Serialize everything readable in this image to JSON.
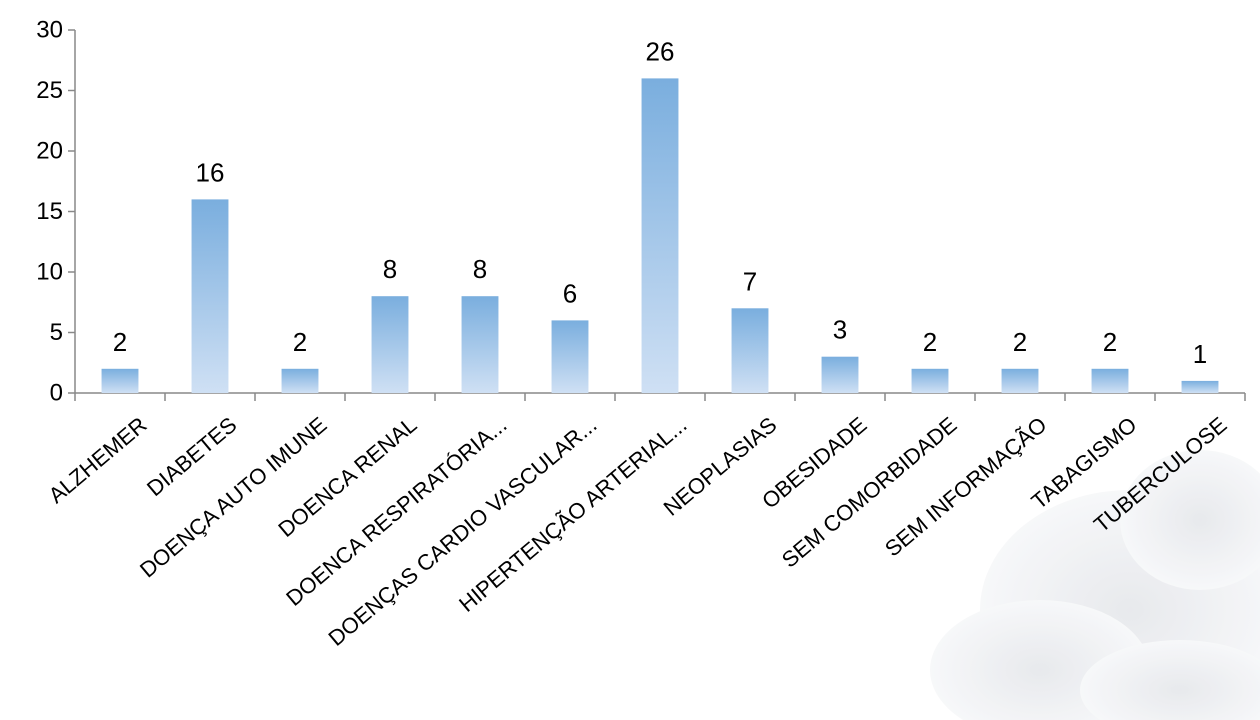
{
  "chart_data": {
    "type": "bar",
    "title": "",
    "xlabel": "",
    "ylabel": "",
    "categories": [
      "ALZHEMER",
      "DIABETES",
      "DOENÇA AUTO IMUNE",
      "DOENCA RENAL",
      "DOENCA RESPIRATÓRIA...",
      "DOENÇAS CARDIO VASCULAR...",
      "HIPERTENÇÃO ARTERIAL...",
      "NEOPLASIAS",
      "OBESIDADE",
      "SEM COMORBIDADE",
      "SEM INFORMAÇÃO",
      "TABAGISMO",
      "TUBERCULOSE"
    ],
    "values": [
      2,
      16,
      2,
      8,
      8,
      6,
      26,
      7,
      3,
      2,
      2,
      2,
      1
    ],
    "data_labels": [
      "2",
      "16",
      "2",
      "8",
      "8",
      "6",
      "26",
      "7",
      "3",
      "2",
      "2",
      "2",
      "1"
    ],
    "ylim": [
      0,
      30
    ],
    "yticks": [
      0,
      5,
      10,
      15,
      20,
      25,
      30
    ],
    "ytick_labels": [
      "0",
      "5",
      "10",
      "15",
      "20",
      "25",
      "30"
    ],
    "grid": false,
    "legend": "none",
    "colors": {
      "bar_top": "#7aaede",
      "bar_bottom": "#cfe0f4",
      "axis": "#888888"
    }
  }
}
